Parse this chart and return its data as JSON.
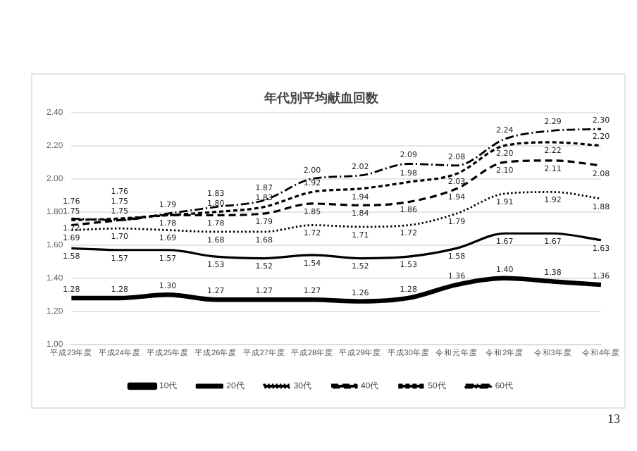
{
  "chart_data": {
    "type": "line",
    "title": "年代別平均献血回数",
    "categories": [
      "平成23年度",
      "平成24年度",
      "平成25年度",
      "平成26年度",
      "平成27年度",
      "平成28年度",
      "平成29年度",
      "平成30年度",
      "令和元年度",
      "令和2年度",
      "令和3年度",
      "令和4年度"
    ],
    "series": [
      {
        "name": "10代",
        "color": "#000000",
        "line_style": "solid",
        "values": [
          1.28,
          1.28,
          1.3,
          1.27,
          1.27,
          1.27,
          1.26,
          1.28,
          1.36,
          1.4,
          1.38,
          1.36
        ],
        "value_labels": [
          "1.28",
          "1.28",
          "1.30",
          "1.27",
          "1.27",
          "1.27",
          "1.26",
          "1.28",
          "1.36",
          "1.40",
          "1.38",
          "1.36"
        ]
      },
      {
        "name": "20代",
        "color": "#000000",
        "line_style": "solid",
        "values": [
          1.58,
          1.57,
          1.57,
          1.53,
          1.52,
          1.54,
          1.52,
          1.53,
          1.58,
          1.67,
          1.67,
          1.63
        ],
        "value_labels": [
          "1.58",
          "1.57",
          "1.57",
          "1.53",
          "1.52",
          "1.54",
          "1.52",
          "1.53",
          "1.58",
          "1.67",
          "1.67",
          "1.63"
        ]
      },
      {
        "name": "30代",
        "color": "#000000",
        "line_style": "dotted",
        "values": [
          1.69,
          1.7,
          1.69,
          1.68,
          1.68,
          1.72,
          1.71,
          1.72,
          1.79,
          1.91,
          1.92,
          1.88
        ],
        "value_labels": [
          "1.69",
          "1.70",
          "1.69",
          "1.68",
          "1.68",
          "1.72",
          "1.71",
          "1.72",
          "1.79",
          "1.91",
          "1.92",
          "1.88"
        ]
      },
      {
        "name": "40代",
        "color": "#000000",
        "line_style": "dashed",
        "values": [
          1.72,
          1.75,
          1.78,
          1.78,
          1.79,
          1.85,
          1.84,
          1.86,
          1.94,
          2.1,
          2.11,
          2.08
        ],
        "value_labels": [
          "1.72",
          "1.75",
          "1.78",
          "1.78",
          "1.79",
          "1.85",
          "1.84",
          "1.86",
          "1.94",
          "2.10",
          "2.11",
          "2.08"
        ]
      },
      {
        "name": "50代",
        "color": "#000000",
        "line_style": "dashed",
        "values": [
          1.75,
          1.76,
          1.78,
          1.8,
          1.83,
          1.92,
          1.94,
          1.98,
          2.03,
          2.2,
          2.22,
          2.2
        ],
        "value_labels": [
          "1.75",
          "1.76",
          null,
          "1.80",
          "1.83",
          "1.92",
          "1.94",
          "1.98",
          "2.03",
          "2.20",
          "2.22",
          "2.20"
        ]
      },
      {
        "name": "60代",
        "color": "#000000",
        "line_style": "dashed",
        "values": [
          1.76,
          1.75,
          1.79,
          1.83,
          1.87,
          2.0,
          2.02,
          2.09,
          2.08,
          2.24,
          2.29,
          2.3
        ],
        "value_labels": [
          "1.76",
          "1.75",
          "1.79",
          "1.83",
          "1.87",
          "2.00",
          "2.02",
          "2.09",
          "2.08",
          "2.24",
          "2.29",
          "2.30"
        ]
      }
    ],
    "ylim": [
      1.0,
      2.4
    ],
    "yticks": [
      {
        "value": 1.0,
        "label": "1.00"
      },
      {
        "value": 1.2,
        "label": "1.20"
      },
      {
        "value": 1.4,
        "label": "1.40"
      },
      {
        "value": 1.6,
        "label": "1.60"
      },
      {
        "value": 1.8,
        "label": "1.80"
      },
      {
        "value": 2.0,
        "label": "2.00"
      },
      {
        "value": 2.2,
        "label": "2.20"
      },
      {
        "value": 2.4,
        "label": "2.40"
      }
    ],
    "grid": "y",
    "legend": "bottom",
    "marker": "none",
    "annotations": [
      "13"
    ]
  }
}
